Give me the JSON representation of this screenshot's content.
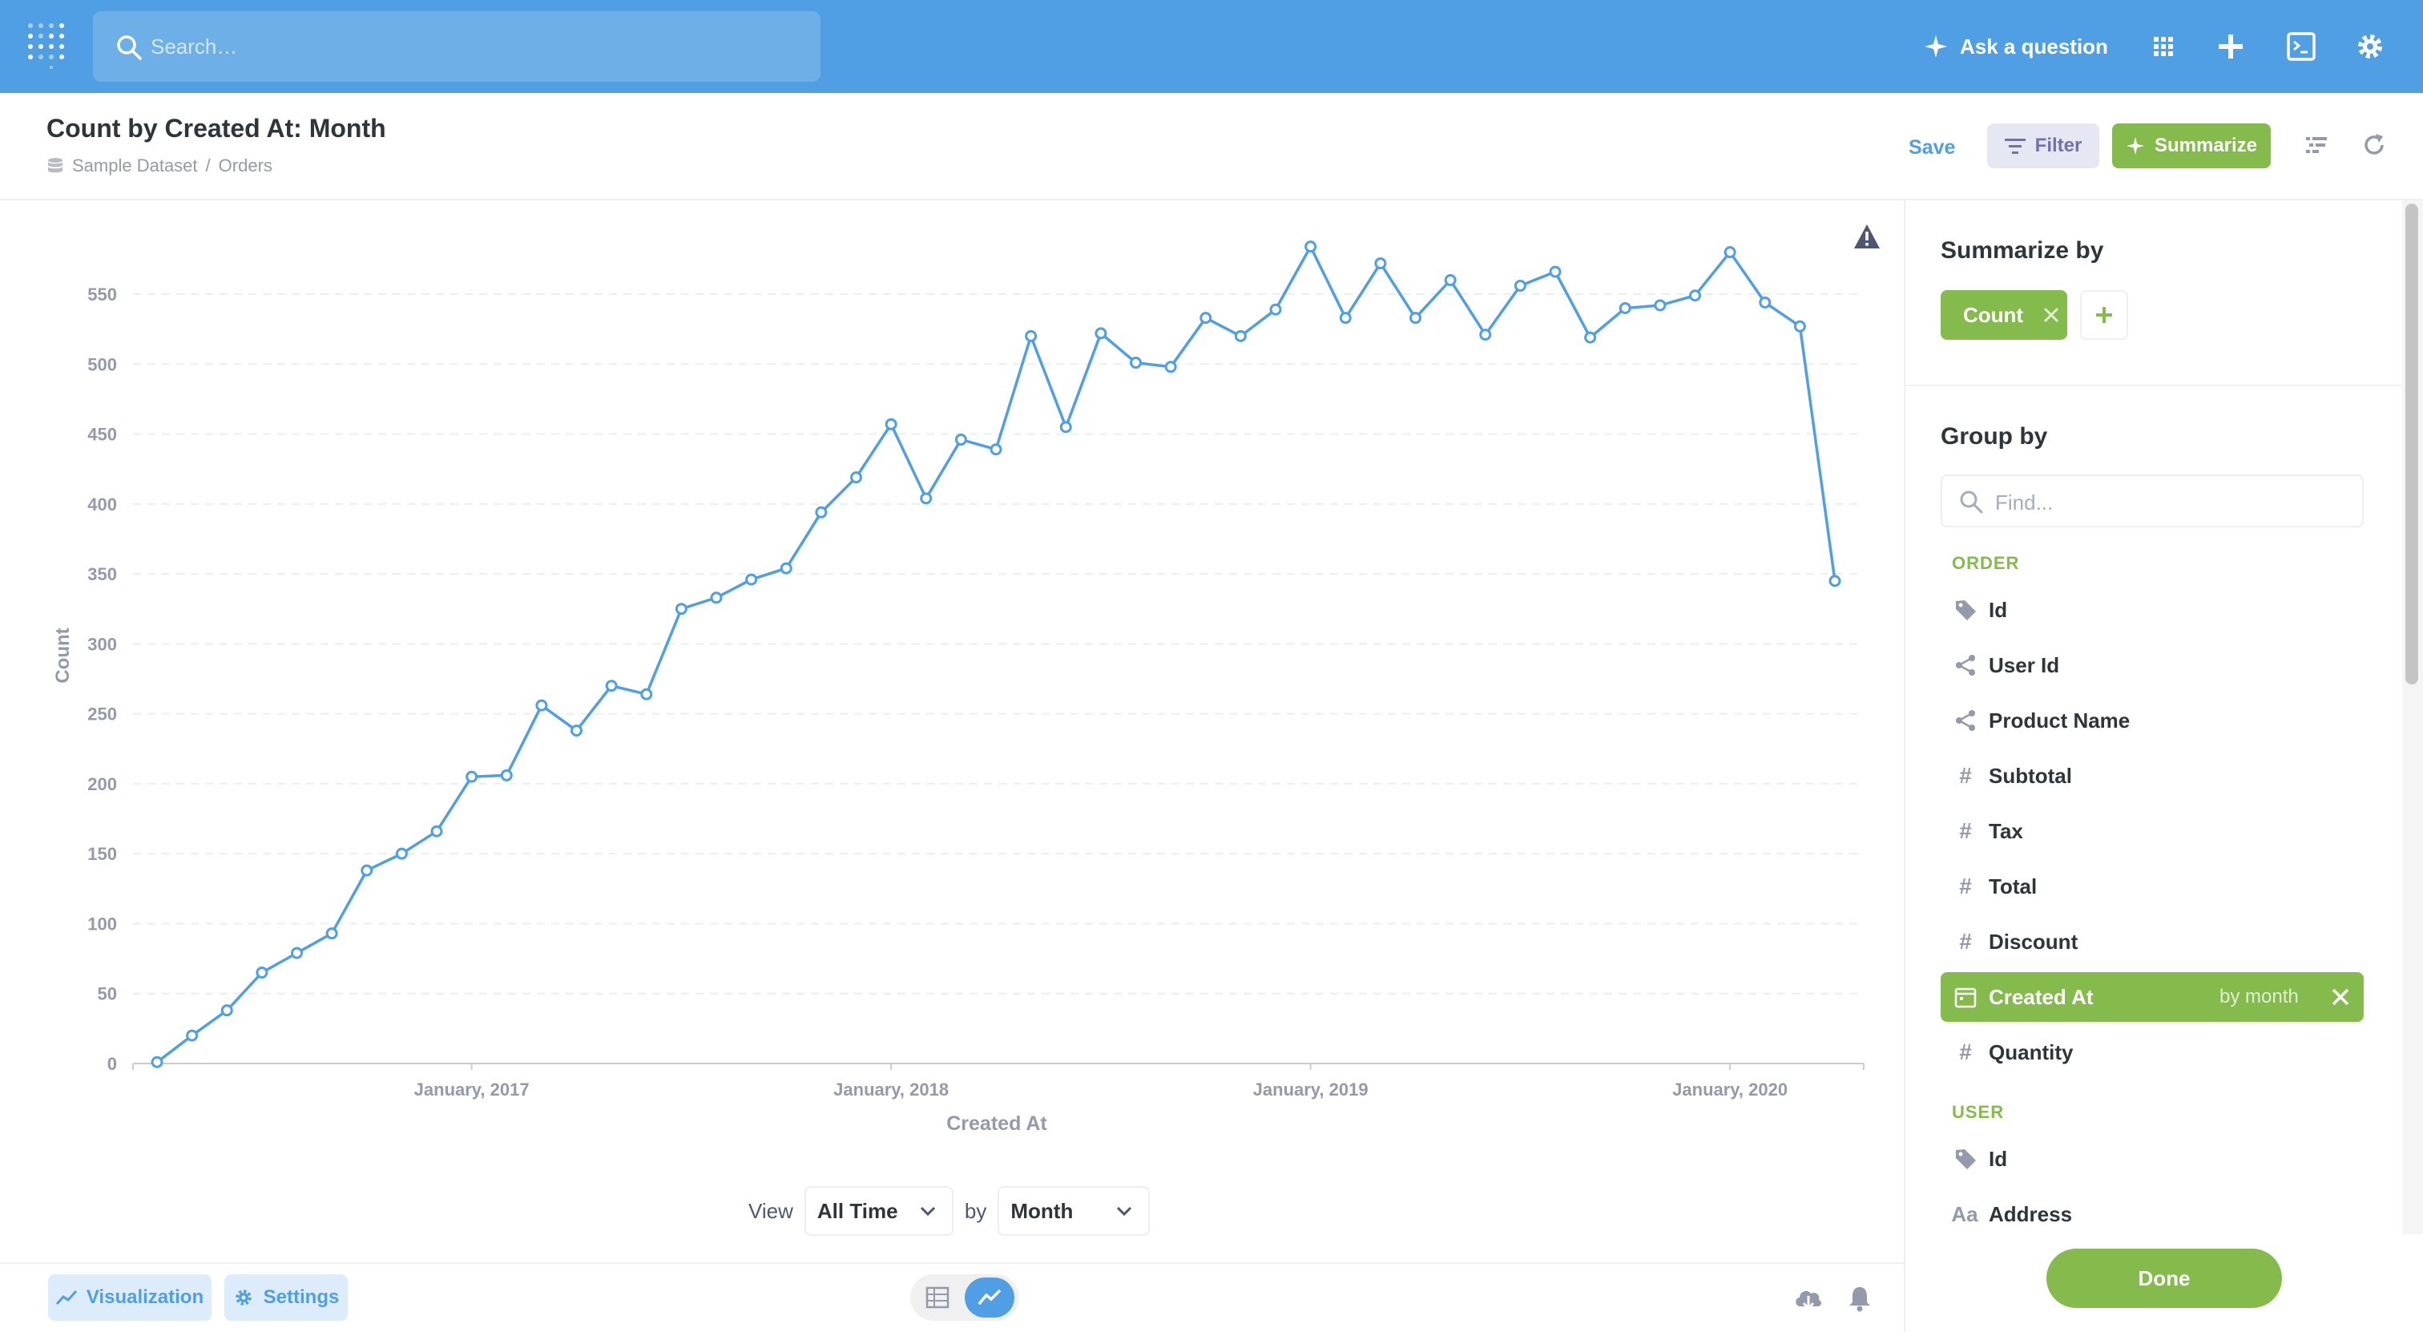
{
  "nav": {
    "search_placeholder": "Search…",
    "ask_label": "Ask a question",
    "icons": [
      "logo-icon",
      "search-icon",
      "sparkle-icon",
      "grid-icon",
      "plus-icon",
      "sql-icon",
      "gear-icon"
    ]
  },
  "header": {
    "title": "Count by Created At: Month",
    "breadcrumb": {
      "database": "Sample Dataset",
      "separator": "/",
      "table": "Orders"
    },
    "save_label": "Save",
    "filter_label": "Filter",
    "summarize_label": "Summarize"
  },
  "chart_data": {
    "type": "line",
    "xlabel": "Created At",
    "ylabel": "Count",
    "ylim": [
      0,
      550
    ],
    "yticks": [
      0,
      50,
      100,
      150,
      200,
      250,
      300,
      350,
      400,
      450,
      500,
      550
    ],
    "xtick_labels": [
      "January, 2017",
      "January, 2018",
      "January, 2019",
      "January, 2020"
    ],
    "x_start": "2016-04",
    "color": "#509ee3",
    "grid": "horizontal-dashed",
    "series": [
      {
        "values": [
          1,
          20,
          38,
          65,
          79,
          93,
          138,
          150,
          166,
          205,
          206,
          256,
          238,
          270,
          264,
          325,
          333,
          346,
          354,
          394,
          419,
          457,
          404,
          446,
          439,
          520,
          455,
          522,
          501,
          498,
          533,
          520,
          539,
          584,
          533,
          572,
          533,
          560,
          521,
          556,
          566,
          519,
          540,
          542,
          549,
          580,
          544,
          527,
          345
        ]
      }
    ]
  },
  "controls": {
    "view_label": "View",
    "time_value": "All Time",
    "by_label": "by",
    "unit_value": "Month"
  },
  "footer": {
    "visualization_label": "Visualization",
    "settings_label": "Settings"
  },
  "sidebar": {
    "summarize_heading": "Summarize by",
    "metric_label": "Count",
    "group_heading": "Group by",
    "find_placeholder": "Find...",
    "sections": [
      {
        "name": "ORDER",
        "fields": [
          {
            "label": "Id",
            "icon": "tag-icon"
          },
          {
            "label": "User Id",
            "icon": "connections-icon"
          },
          {
            "label": "Product Name",
            "icon": "connections-icon"
          },
          {
            "label": "Subtotal",
            "icon": "#"
          },
          {
            "label": "Tax",
            "icon": "#"
          },
          {
            "label": "Total",
            "icon": "#"
          },
          {
            "label": "Discount",
            "icon": "#"
          },
          {
            "label": "Created At",
            "icon": "calendar-icon",
            "selected": true,
            "binning": "by month"
          },
          {
            "label": "Quantity",
            "icon": "#"
          }
        ]
      },
      {
        "name": "USER",
        "fields": [
          {
            "label": "Id",
            "icon": "tag-icon"
          },
          {
            "label": "Address",
            "icon": "Aa"
          }
        ]
      }
    ],
    "done_label": "Done",
    "accent": "#84bb4c"
  }
}
